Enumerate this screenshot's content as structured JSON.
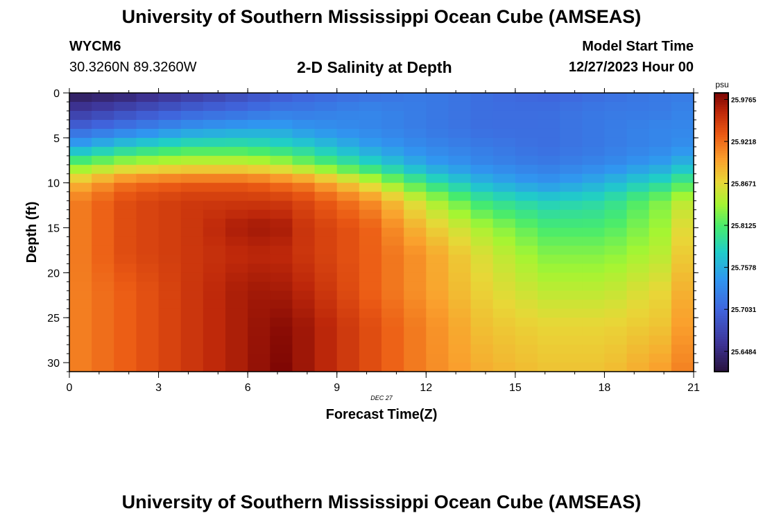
{
  "header": {
    "title": "University of Southern Mississippi Ocean Cube (AMSEAS)",
    "station_id": "WYCM6",
    "coords": "30.3260N  89.3260W",
    "plot_title": "2-D Salinity at Depth",
    "model_start_label": "Model Start Time",
    "model_start_value": "12/27/2023 Hour 00"
  },
  "footer": {
    "title": "University of Southern Mississippi Ocean Cube (AMSEAS)"
  },
  "chart_data": {
    "type": "heatmap",
    "title": "2-D Salinity at Depth",
    "xlabel": "Forecast Time(Z)",
    "ylabel": "Depth (ft)",
    "date_label": "DEC 27",
    "xlim": [
      0,
      21
    ],
    "ylim": [
      0,
      31
    ],
    "x_ticks": [
      0,
      3,
      6,
      9,
      12,
      15,
      18,
      21
    ],
    "y_ticks": [
      0,
      5,
      10,
      15,
      20,
      25,
      30
    ],
    "colorbar": {
      "unit": "psu",
      "vmin": 25.622,
      "vmax": 25.985,
      "ticks": [
        "25.9765",
        "25.9218",
        "25.8671",
        "25.8125",
        "25.7578",
        "25.7031",
        "25.6484"
      ]
    },
    "grid": {
      "cols": 28,
      "rows": 31
    },
    "anchors_time": [
      0,
      2,
      4,
      6,
      7,
      8,
      10,
      12,
      14,
      16,
      18,
      20,
      21
    ],
    "anchors_depth": [
      0,
      2,
      4,
      6,
      8,
      10,
      12,
      15,
      18,
      22,
      26,
      31
    ],
    "values_anchor": [
      [
        25.63,
        25.64,
        25.66,
        25.68,
        25.69,
        25.7,
        25.71,
        25.72,
        25.71,
        25.7,
        25.71,
        25.72,
        25.72
      ],
      [
        25.66,
        25.68,
        25.7,
        25.71,
        25.72,
        25.72,
        25.73,
        25.72,
        25.71,
        25.71,
        25.72,
        25.72,
        25.73
      ],
      [
        25.7,
        25.72,
        25.74,
        25.75,
        25.75,
        25.74,
        25.73,
        25.72,
        25.71,
        25.71,
        25.72,
        25.73,
        25.73
      ],
      [
        25.75,
        25.78,
        25.8,
        25.8,
        25.79,
        25.78,
        25.75,
        25.73,
        25.72,
        25.71,
        25.72,
        25.73,
        25.74
      ],
      [
        25.82,
        25.85,
        25.86,
        25.86,
        25.85,
        25.83,
        25.79,
        25.75,
        25.73,
        25.72,
        25.73,
        25.75,
        25.77
      ],
      [
        25.88,
        25.92,
        25.93,
        25.93,
        25.92,
        25.91,
        25.86,
        25.8,
        25.76,
        25.74,
        25.76,
        25.79,
        25.82
      ],
      [
        25.91,
        25.94,
        25.95,
        25.95,
        25.95,
        25.94,
        25.91,
        25.85,
        25.8,
        25.78,
        25.79,
        25.83,
        25.86
      ],
      [
        25.91,
        25.94,
        25.95,
        25.97,
        25.97,
        25.95,
        25.93,
        25.88,
        25.84,
        25.81,
        25.81,
        25.84,
        25.88
      ],
      [
        25.91,
        25.94,
        25.95,
        25.96,
        25.96,
        25.95,
        25.93,
        25.9,
        25.86,
        25.83,
        25.83,
        25.85,
        25.89
      ],
      [
        25.91,
        25.93,
        25.95,
        25.97,
        25.97,
        25.96,
        25.93,
        25.9,
        25.87,
        25.85,
        25.85,
        25.87,
        25.9
      ],
      [
        25.91,
        25.93,
        25.95,
        25.97,
        25.98,
        25.97,
        25.94,
        25.91,
        25.88,
        25.87,
        25.87,
        25.88,
        25.91
      ],
      [
        25.91,
        25.93,
        25.95,
        25.97,
        25.985,
        25.97,
        25.94,
        25.91,
        25.89,
        25.88,
        25.88,
        25.9,
        25.92
      ]
    ]
  }
}
